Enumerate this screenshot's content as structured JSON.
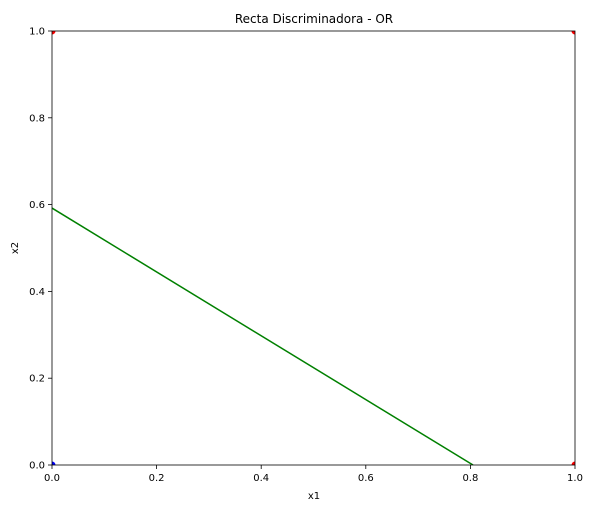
{
  "chart_data": {
    "type": "line",
    "title": "Recta Discriminadora - OR",
    "xlabel": "x1",
    "ylabel": "x2",
    "xlim": [
      0,
      1
    ],
    "ylim": [
      0,
      1
    ],
    "xticks": [
      "0.0",
      "0.2",
      "0.4",
      "0.6",
      "0.8",
      "1.0"
    ],
    "yticks": [
      "0.0",
      "0.2",
      "0.4",
      "0.6",
      "0.8",
      "1.0"
    ],
    "grid": false,
    "line": {
      "color": "#008000",
      "x": [
        0.0,
        0.805
      ],
      "y": [
        0.592,
        0.0
      ]
    },
    "points": [
      {
        "x": 0,
        "y": 0,
        "color": "#0000ff"
      },
      {
        "x": 0,
        "y": 1,
        "color": "#ff0000"
      },
      {
        "x": 1,
        "y": 0,
        "color": "#ff0000"
      },
      {
        "x": 1,
        "y": 1,
        "color": "#ff0000"
      }
    ]
  }
}
